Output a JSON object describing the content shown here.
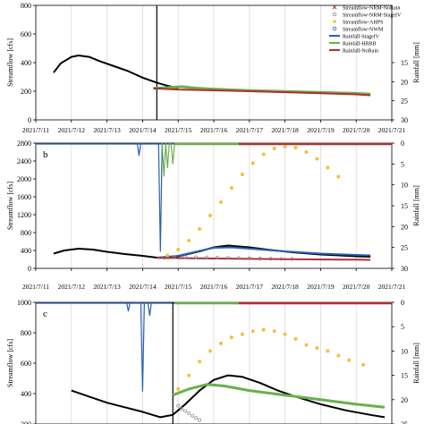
{
  "chart_data": [
    {
      "type": "line",
      "panel_label": "",
      "ylabel": "Streamflow [cfs]",
      "y2label": "Rainfall [mm]",
      "ylim": [
        0,
        800
      ],
      "yticks": [
        0,
        200,
        400,
        600,
        800
      ],
      "y2ticks": [
        15,
        20,
        25,
        30
      ],
      "xticks": [
        "2021/7/11",
        "2021/7/12",
        "2021/7/13",
        "2021/7/14",
        "2021/7/15",
        "2021/7/16",
        "2021/7/17",
        "2021/7/18",
        "2021/7/19",
        "2021/7/20",
        "2021/7/21"
      ],
      "xlim": [
        0,
        10
      ],
      "vline_x": 3.4,
      "legend": [
        {
          "label": "Streamflow-NRM-NoRain",
          "kind": "x",
          "color": "#c0392b"
        },
        {
          "label": "Streamflow-NRM-StageIV",
          "kind": "o",
          "color": "#7f8c8d"
        },
        {
          "label": "Streamflow-AHPS",
          "kind": "dot",
          "color": "#f0c040"
        },
        {
          "label": "Streamflow-NWM",
          "kind": "o",
          "color": "#2a5fb3"
        },
        {
          "label": "Rainfall-StageIV",
          "kind": "line",
          "color": "#2a5fb3"
        },
        {
          "label": "Rainfall-HRRR",
          "kind": "line",
          "color": "#6ab04c"
        },
        {
          "label": "Rainfall-NoRain",
          "kind": "line",
          "color": "#b03030"
        }
      ],
      "series": [
        {
          "name": "Observed",
          "color": "#000000",
          "width": 2,
          "points": [
            [
              0.5,
              330
            ],
            [
              0.7,
              395
            ],
            [
              1.0,
              440
            ],
            [
              1.2,
              450
            ],
            [
              1.5,
              440
            ],
            [
              1.8,
              410
            ],
            [
              2.2,
              375
            ],
            [
              2.6,
              340
            ],
            [
              3.0,
              295
            ],
            [
              3.4,
              260
            ],
            [
              3.7,
              238
            ],
            [
              4.0,
              220
            ]
          ]
        },
        {
          "name": "HRRR",
          "color": "#6ab04c",
          "width": 3,
          "points": [
            [
              3.3,
              220
            ],
            [
              3.7,
              225
            ],
            [
              4.1,
              232
            ],
            [
              4.5,
              222
            ],
            [
              5.0,
              215
            ],
            [
              6.0,
              205
            ],
            [
              7.0,
              198
            ],
            [
              8.0,
              192
            ],
            [
              9.0,
              185
            ],
            [
              9.4,
              180
            ]
          ]
        },
        {
          "name": "NoRain",
          "color": "#b03030",
          "width": 2,
          "points": [
            [
              3.3,
              220
            ],
            [
              4.0,
              212
            ],
            [
              5.0,
              206
            ],
            [
              6.0,
              200
            ],
            [
              7.0,
              193
            ],
            [
              8.0,
              186
            ],
            [
              9.0,
              178
            ],
            [
              9.4,
              172
            ]
          ]
        }
      ]
    },
    {
      "type": "line",
      "panel_label": "b",
      "ylabel": "Streamflow [cfs]",
      "y2label": "Rainfall [mm]",
      "ylim": [
        0,
        2800
      ],
      "yticks": [
        0,
        400,
        800,
        1200,
        1600,
        2000,
        2400,
        2800
      ],
      "y2ticks": [
        0,
        5,
        10,
        15,
        20,
        25,
        30
      ],
      "xticks": [
        "2021/7/11",
        "2021/7/12",
        "2021/7/13",
        "2021/7/14",
        "2021/7/15",
        "2021/7/16",
        "2021/7/17",
        "2021/7/18",
        "2021/7/19",
        "2021/7/20",
        "2021/7/21"
      ],
      "xlim": [
        0,
        10
      ],
      "vline_x": null,
      "series": [
        {
          "name": "Observed",
          "color": "#000000",
          "width": 2,
          "points": [
            [
              0.5,
              330
            ],
            [
              0.8,
              400
            ],
            [
              1.2,
              440
            ],
            [
              1.6,
              420
            ],
            [
              2.0,
              370
            ],
            [
              2.5,
              320
            ],
            [
              3.0,
              280
            ],
            [
              3.4,
              240
            ],
            [
              3.7,
              235
            ],
            [
              4.0,
              270
            ],
            [
              4.6,
              380
            ],
            [
              5.0,
              470
            ],
            [
              5.4,
              510
            ],
            [
              6.0,
              470
            ],
            [
              6.6,
              410
            ],
            [
              7.2,
              360
            ],
            [
              8.0,
              310
            ],
            [
              9.0,
              270
            ],
            [
              9.4,
              260
            ]
          ]
        },
        {
          "name": "NWM",
          "color": "#2a5fb3",
          "width": 2,
          "points": [
            [
              3.4,
              240
            ],
            [
              4.0,
              280
            ],
            [
              4.6,
              390
            ],
            [
              5.0,
              460
            ],
            [
              5.5,
              470
            ],
            [
              6.0,
              440
            ],
            [
              7.0,
              380
            ],
            [
              8.0,
              330
            ],
            [
              9.0,
              300
            ],
            [
              9.4,
              290
            ]
          ]
        },
        {
          "name": "NoRain",
          "color": "#b03030",
          "width": 2,
          "points": [
            [
              3.4,
              235
            ],
            [
              5.0,
              220
            ],
            [
              7.0,
              205
            ],
            [
              9.0,
              195
            ],
            [
              9.4,
              190
            ]
          ]
        }
      ],
      "markers": [
        {
          "name": "AHPS",
          "color": "#f0c040",
          "points": [
            [
              3.7,
              290
            ],
            [
              4.0,
              420
            ],
            [
              4.3,
              620
            ],
            [
              4.6,
              880
            ],
            [
              4.9,
              1180
            ],
            [
              5.2,
              1480
            ],
            [
              5.5,
              1800
            ],
            [
              5.8,
              2100
            ],
            [
              6.1,
              2350
            ],
            [
              6.4,
              2550
            ],
            [
              6.7,
              2680
            ],
            [
              7.0,
              2720
            ],
            [
              7.3,
              2700
            ],
            [
              7.6,
              2600
            ],
            [
              7.9,
              2450
            ],
            [
              8.2,
              2250
            ],
            [
              8.5,
              2050
            ]
          ]
        },
        {
          "name": "StageIV-circles",
          "color": "#7f8c8d",
          "points": [
            [
              3.6,
              240
            ],
            [
              3.9,
              250
            ],
            [
              4.2,
              255
            ],
            [
              4.5,
              250
            ],
            [
              4.8,
              245
            ],
            [
              5.1,
              240
            ],
            [
              5.4,
              235
            ],
            [
              5.7,
              230
            ],
            [
              6.0,
              225
            ],
            [
              6.3,
              220
            ],
            [
              6.6,
              215
            ],
            [
              6.9,
              212
            ],
            [
              7.2,
              210
            ]
          ]
        }
      ],
      "rain_spikes": [
        {
          "x": 2.9,
          "depth_mm": 3,
          "color": "#2a5fb3"
        },
        {
          "x": 3.5,
          "depth_mm": 26,
          "color": "#2a5fb3"
        },
        {
          "x": 3.6,
          "depth_mm": 8,
          "color": "#6ab04c"
        },
        {
          "x": 3.7,
          "depth_mm": 6,
          "color": "#6ab04c"
        },
        {
          "x": 3.85,
          "depth_mm": 5,
          "color": "#6ab04c"
        }
      ]
    },
    {
      "type": "line",
      "panel_label": "c",
      "ylabel": "Streamflow [cfs]",
      "y2label": "Rainfall [mm]",
      "ylim": [
        200,
        1000
      ],
      "yticks": [
        200,
        400,
        600,
        800,
        1000
      ],
      "y2ticks": [
        0,
        5,
        10,
        15,
        20,
        25
      ],
      "xticks": [],
      "xlim": [
        0,
        10
      ],
      "vline_x": 3.85,
      "series": [
        {
          "name": "Observed",
          "color": "#000000",
          "width": 2,
          "points": [
            [
              1.0,
              420
            ],
            [
              1.5,
              380
            ],
            [
              2.0,
              340
            ],
            [
              2.5,
              310
            ],
            [
              3.0,
              280
            ],
            [
              3.5,
              245
            ],
            [
              3.85,
              260
            ],
            [
              4.2,
              330
            ],
            [
              4.6,
              420
            ],
            [
              5.0,
              490
            ],
            [
              5.4,
              520
            ],
            [
              5.8,
              510
            ],
            [
              6.3,
              470
            ],
            [
              6.8,
              420
            ],
            [
              7.3,
              380
            ],
            [
              8.0,
              330
            ],
            [
              8.7,
              290
            ],
            [
              9.4,
              260
            ],
            [
              9.8,
              245
            ]
          ]
        },
        {
          "name": "HRRR",
          "color": "#6ab04c",
          "width": 3,
          "points": [
            [
              3.85,
              390
            ],
            [
              4.3,
              430
            ],
            [
              4.8,
              460
            ],
            [
              5.3,
              450
            ],
            [
              6.0,
              420
            ],
            [
              7.0,
              390
            ],
            [
              8.0,
              360
            ],
            [
              9.0,
              330
            ],
            [
              9.8,
              310
            ]
          ]
        }
      ],
      "markers": [
        {
          "name": "AHPS",
          "color": "#f0c040",
          "points": [
            [
              4.0,
              430
            ],
            [
              4.3,
              520
            ],
            [
              4.6,
              610
            ],
            [
              4.9,
              680
            ],
            [
              5.2,
              730
            ],
            [
              5.5,
              770
            ],
            [
              5.8,
              790
            ],
            [
              6.1,
              810
            ],
            [
              6.4,
              820
            ],
            [
              6.7,
              810
            ],
            [
              7.0,
              790
            ],
            [
              7.3,
              760
            ],
            [
              7.6,
              720
            ],
            [
              7.9,
              700
            ],
            [
              8.2,
              680
            ],
            [
              8.5,
              650
            ],
            [
              8.8,
              620
            ],
            [
              9.2,
              590
            ]
          ]
        },
        {
          "name": "StageIV-circles",
          "color": "#7f8c8d",
          "points": [
            [
              4.0,
              320
            ],
            [
              4.1,
              300
            ],
            [
              4.2,
              285
            ],
            [
              4.3,
              270
            ],
            [
              4.4,
              255
            ],
            [
              4.5,
              240
            ],
            [
              4.6,
              225
            ]
          ]
        }
      ],
      "rain_spikes": [
        {
          "x": 2.6,
          "depth_mm": 2,
          "color": "#2a5fb3"
        },
        {
          "x": 3.0,
          "depth_mm": 20,
          "color": "#2a5fb3"
        },
        {
          "x": 3.2,
          "depth_mm": 3,
          "color": "#2a5fb3"
        }
      ]
    }
  ]
}
